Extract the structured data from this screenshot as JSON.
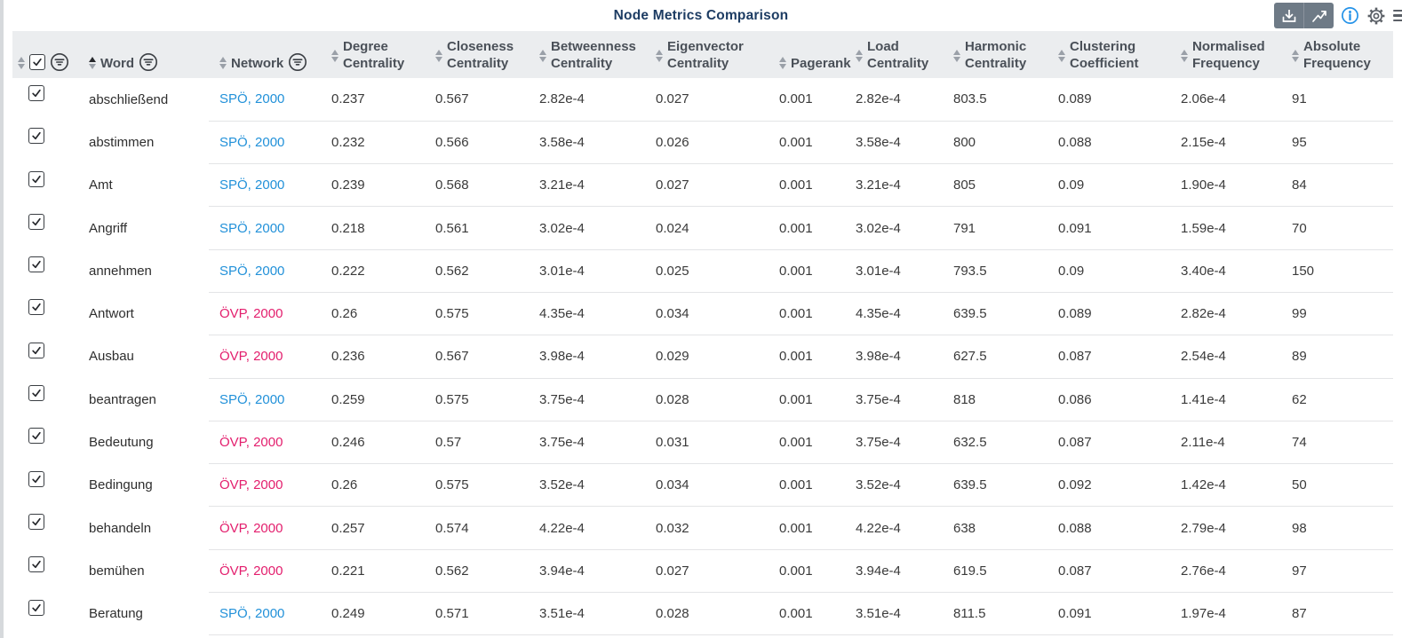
{
  "title": "Node Metrics Comparison",
  "toolbar": {
    "buttons": [
      {
        "name": "download",
        "icon": "download-icon"
      },
      {
        "name": "trend-chart",
        "icon": "trend-chart-icon"
      }
    ],
    "info_icon": "info-icon",
    "settings_icon": "gear-icon",
    "menu_icon": "hamburger-icon",
    "accent_blue": "#2492e8",
    "button_bg": "#6e7a86"
  },
  "colors": {
    "spo": "#2291d9",
    "ovp": "#e31e6d",
    "title": "#1d3c63",
    "header_bg": "#ebedef"
  },
  "table": {
    "sort": {
      "column": "word",
      "direction": "asc"
    },
    "select_all_checked": true,
    "columns": [
      {
        "id": "select",
        "label": "",
        "label2": "",
        "filter": true,
        "checkbox": true
      },
      {
        "id": "word",
        "label": "Word",
        "label2": "",
        "filter": true,
        "sorted": "asc"
      },
      {
        "id": "network",
        "label": "Network",
        "label2": "",
        "filter": true
      },
      {
        "id": "degree",
        "label": "Degree",
        "label2": "Centrality"
      },
      {
        "id": "closeness",
        "label": "Closeness",
        "label2": "Centrality"
      },
      {
        "id": "betweenness",
        "label": "Betweenness",
        "label2": "Centrality"
      },
      {
        "id": "eigenvector",
        "label": "Eigenvector",
        "label2": "Centrality"
      },
      {
        "id": "pagerank",
        "label": "Pagerank",
        "label2": ""
      },
      {
        "id": "load",
        "label": "Load",
        "label2": "Centrality"
      },
      {
        "id": "harmonic",
        "label": "Harmonic",
        "label2": "Centrality"
      },
      {
        "id": "clustering",
        "label": "Clustering",
        "label2": "Coefficient"
      },
      {
        "id": "normalised",
        "label": "Normalised",
        "label2": "Frequency"
      },
      {
        "id": "absolute",
        "label": "Absolute",
        "label2": "Frequency"
      }
    ],
    "rows": [
      {
        "checked": true,
        "word": "abschließend",
        "network": "SPÖ, 2000",
        "party": "spo",
        "degree": "0.237",
        "closeness": "0.567",
        "betweenness": "2.82e-4",
        "eigenvector": "0.027",
        "pagerank": "0.001",
        "load": "2.82e-4",
        "harmonic": "803.5",
        "clustering": "0.089",
        "normalised": "2.06e-4",
        "absolute": "91"
      },
      {
        "checked": true,
        "word": "abstimmen",
        "network": "SPÖ, 2000",
        "party": "spo",
        "degree": "0.232",
        "closeness": "0.566",
        "betweenness": "3.58e-4",
        "eigenvector": "0.026",
        "pagerank": "0.001",
        "load": "3.58e-4",
        "harmonic": "800",
        "clustering": "0.088",
        "normalised": "2.15e-4",
        "absolute": "95"
      },
      {
        "checked": true,
        "word": "Amt",
        "network": "SPÖ, 2000",
        "party": "spo",
        "degree": "0.239",
        "closeness": "0.568",
        "betweenness": "3.21e-4",
        "eigenvector": "0.027",
        "pagerank": "0.001",
        "load": "3.21e-4",
        "harmonic": "805",
        "clustering": "0.09",
        "normalised": "1.90e-4",
        "absolute": "84"
      },
      {
        "checked": true,
        "word": "Angriff",
        "network": "SPÖ, 2000",
        "party": "spo",
        "degree": "0.218",
        "closeness": "0.561",
        "betweenness": "3.02e-4",
        "eigenvector": "0.024",
        "pagerank": "0.001",
        "load": "3.02e-4",
        "harmonic": "791",
        "clustering": "0.091",
        "normalised": "1.59e-4",
        "absolute": "70"
      },
      {
        "checked": true,
        "word": "annehmen",
        "network": "SPÖ, 2000",
        "party": "spo",
        "degree": "0.222",
        "closeness": "0.562",
        "betweenness": "3.01e-4",
        "eigenvector": "0.025",
        "pagerank": "0.001",
        "load": "3.01e-4",
        "harmonic": "793.5",
        "clustering": "0.09",
        "normalised": "3.40e-4",
        "absolute": "150"
      },
      {
        "checked": true,
        "word": "Antwort",
        "network": "ÖVP, 2000",
        "party": "ovp",
        "degree": "0.26",
        "closeness": "0.575",
        "betweenness": "4.35e-4",
        "eigenvector": "0.034",
        "pagerank": "0.001",
        "load": "4.35e-4",
        "harmonic": "639.5",
        "clustering": "0.089",
        "normalised": "2.82e-4",
        "absolute": "99"
      },
      {
        "checked": true,
        "word": "Ausbau",
        "network": "ÖVP, 2000",
        "party": "ovp",
        "degree": "0.236",
        "closeness": "0.567",
        "betweenness": "3.98e-4",
        "eigenvector": "0.029",
        "pagerank": "0.001",
        "load": "3.98e-4",
        "harmonic": "627.5",
        "clustering": "0.087",
        "normalised": "2.54e-4",
        "absolute": "89"
      },
      {
        "checked": true,
        "word": "beantragen",
        "network": "SPÖ, 2000",
        "party": "spo",
        "degree": "0.259",
        "closeness": "0.575",
        "betweenness": "3.75e-4",
        "eigenvector": "0.028",
        "pagerank": "0.001",
        "load": "3.75e-4",
        "harmonic": "818",
        "clustering": "0.086",
        "normalised": "1.41e-4",
        "absolute": "62"
      },
      {
        "checked": true,
        "word": "Bedeutung",
        "network": "ÖVP, 2000",
        "party": "ovp",
        "degree": "0.246",
        "closeness": "0.57",
        "betweenness": "3.75e-4",
        "eigenvector": "0.031",
        "pagerank": "0.001",
        "load": "3.75e-4",
        "harmonic": "632.5",
        "clustering": "0.087",
        "normalised": "2.11e-4",
        "absolute": "74"
      },
      {
        "checked": true,
        "word": "Bedingung",
        "network": "ÖVP, 2000",
        "party": "ovp",
        "degree": "0.26",
        "closeness": "0.575",
        "betweenness": "3.52e-4",
        "eigenvector": "0.034",
        "pagerank": "0.001",
        "load": "3.52e-4",
        "harmonic": "639.5",
        "clustering": "0.092",
        "normalised": "1.42e-4",
        "absolute": "50"
      },
      {
        "checked": true,
        "word": "behandeln",
        "network": "ÖVP, 2000",
        "party": "ovp",
        "degree": "0.257",
        "closeness": "0.574",
        "betweenness": "4.22e-4",
        "eigenvector": "0.032",
        "pagerank": "0.001",
        "load": "4.22e-4",
        "harmonic": "638",
        "clustering": "0.088",
        "normalised": "2.79e-4",
        "absolute": "98"
      },
      {
        "checked": true,
        "word": "bemühen",
        "network": "ÖVP, 2000",
        "party": "ovp",
        "degree": "0.221",
        "closeness": "0.562",
        "betweenness": "3.94e-4",
        "eigenvector": "0.027",
        "pagerank": "0.001",
        "load": "3.94e-4",
        "harmonic": "619.5",
        "clustering": "0.087",
        "normalised": "2.76e-4",
        "absolute": "97"
      },
      {
        "checked": true,
        "word": "Beratung",
        "network": "SPÖ, 2000",
        "party": "spo",
        "degree": "0.249",
        "closeness": "0.571",
        "betweenness": "3.51e-4",
        "eigenvector": "0.028",
        "pagerank": "0.001",
        "load": "3.51e-4",
        "harmonic": "811.5",
        "clustering": "0.091",
        "normalised": "1.97e-4",
        "absolute": "87"
      }
    ]
  }
}
